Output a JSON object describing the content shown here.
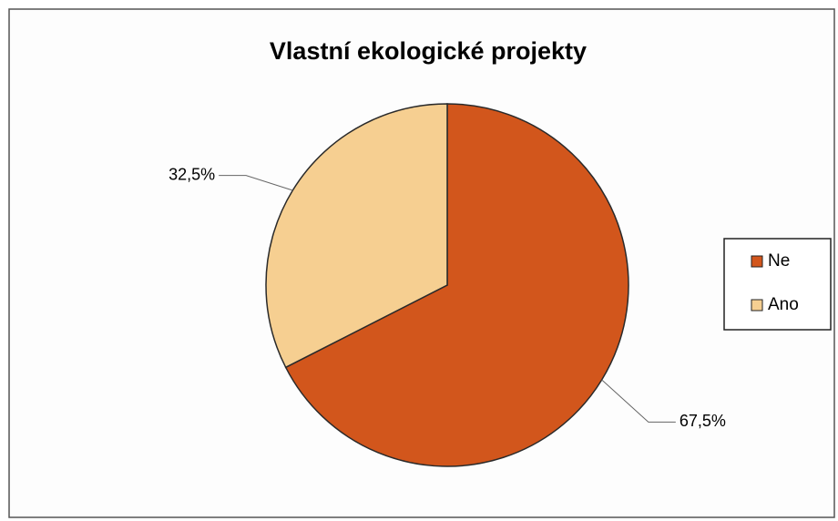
{
  "chart_data": {
    "type": "pie",
    "title": "Vlastní ekologické projekty",
    "categories": [
      "Ne",
      "Ano"
    ],
    "values": [
      67.5,
      32.5
    ],
    "value_labels": [
      "67,5%",
      "32,5%"
    ],
    "colors": [
      "#d2561c",
      "#f6cf91"
    ],
    "legend": "right"
  }
}
